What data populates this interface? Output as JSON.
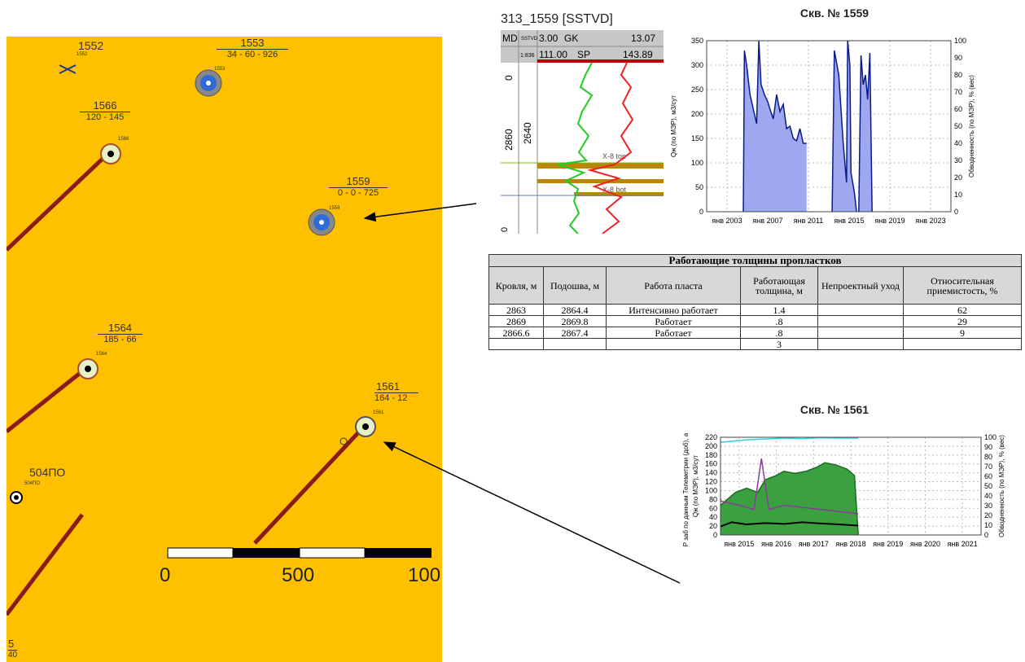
{
  "map": {
    "wells": [
      {
        "id": "1552",
        "values": "",
        "tiny": "1552"
      },
      {
        "id": "1553",
        "values": "34 - 60 - 926",
        "tiny": "1553"
      },
      {
        "id": "1566",
        "values": "120 - 145",
        "tiny": "1566"
      },
      {
        "id": "1559",
        "values": "0 - 0 - 725",
        "tiny": "1559"
      },
      {
        "id": "1564",
        "values": "185 - 66",
        "tiny": "1564"
      },
      {
        "id": "1561",
        "values": "164 - 12",
        "tiny": "1561"
      },
      {
        "id": "504ПО",
        "values": "",
        "tiny": "504ПО"
      },
      {
        "id": "5",
        "values": "40",
        "tiny": ""
      }
    ],
    "scale_labels": [
      "0",
      "500",
      "100"
    ],
    "colors": {
      "background": "#ffc000",
      "trajectory": "#8b1a1a"
    }
  },
  "log": {
    "title": "313_1559 [SSTVD]",
    "header": {
      "md": "MD",
      "sstvd": "SSTVD",
      "gk_min": "3.00",
      "gk_name": "GK",
      "gk_max": "13.07",
      "ratio": "1:836",
      "sp_min": "111.00",
      "sp_name": "SP",
      "sp_max": "143.89"
    },
    "depth_md": "2860",
    "depth_ss": "2640",
    "depth_top": "0",
    "marker_top": "X-8 top",
    "marker_bot": "X-8 bot"
  },
  "chart1559": {
    "title": "Скв. № 1559",
    "chart_data": {
      "type": "area",
      "title": "Скв. № 1559",
      "ylabel": "Qж (по МЭР), м3/сут",
      "y2label": "Обводненность (по МЭР), % (вес)",
      "ylim": [
        0,
        350
      ],
      "y2lim": [
        0,
        100
      ],
      "yticks": [
        "0",
        "50",
        "100",
        "150",
        "200",
        "250",
        "300",
        "350"
      ],
      "y2ticks": [
        "0",
        "10",
        "20",
        "30",
        "40",
        "50",
        "60",
        "70",
        "80",
        "90",
        "100"
      ],
      "xticks": [
        "янв 2003",
        "янв 2007",
        "янв 2011",
        "янв 2015",
        "янв 2019",
        "янв 2023"
      ],
      "xlim": [
        2002.3,
        2024.3
      ],
      "grid": true,
      "series": [
        {
          "x": [
            2005.6,
            2005.7,
            2005.9,
            2006.2,
            2006.5,
            2006.8,
            2007.0,
            2007.2,
            2007.5,
            2007.8,
            2008.0,
            2008.3,
            2008.6,
            2008.9,
            2009.2,
            2009.5,
            2009.8,
            2010.1,
            2010.4,
            2010.7,
            2011.0,
            2011.3
          ],
          "y": [
            0,
            330,
            300,
            240,
            210,
            180,
            350,
            260,
            240,
            225,
            210,
            190,
            240,
            205,
            220,
            170,
            175,
            150,
            145,
            170,
            140,
            140
          ]
        },
        {
          "x": [
            2013.6,
            2013.8,
            2014.2,
            2014.6,
            2014.9,
            2015.0,
            2015.2,
            2015.3,
            2015.6,
            2015.8
          ],
          "y": [
            0,
            330,
            280,
            140,
            60,
            350,
            300,
            80,
            40,
            0
          ]
        },
        {
          "x": [
            2016.0,
            2016.2,
            2016.4,
            2016.6,
            2016.8,
            2017.0,
            2017.2
          ],
          "y": [
            0,
            320,
            260,
            280,
            230,
            325,
            0
          ]
        }
      ]
    }
  },
  "chart1561": {
    "title": "Скв. № 1561",
    "chart_data": {
      "type": "area",
      "title": "Скв. № 1561",
      "ylabel": "P заб по данным Телеметрии (доб), атм",
      "ylabel2": "Qж (по МЭР), м3/сут",
      "y2label": "Обводненность (по МЭР), % (вес)",
      "ylim": [
        0,
        230
      ],
      "y2lim": [
        0,
        100
      ],
      "yticks": [
        "0",
        "20",
        "40",
        "60",
        "80",
        "100",
        "120",
        "140",
        "160",
        "180",
        "200",
        "220"
      ],
      "y2ticks": [
        "0",
        "10",
        "20",
        "30",
        "40",
        "50",
        "60",
        "70",
        "80",
        "90",
        "100"
      ],
      "xticks": [
        "янв 2015",
        "янв 2016",
        "янв 2017",
        "янв 2018",
        "янв 2019",
        "янв 2020",
        "янв 2021"
      ],
      "xlim": [
        2014.3,
        2021.3
      ],
      "grid": true,
      "series": [
        {
          "name": "",
          "x": [
            2014.3,
            2014.7,
            2015.0,
            2015.3,
            2015.5,
            2015.8,
            2016.0,
            2016.3,
            2016.6,
            2016.9,
            2017.1,
            2017.4,
            2017.7,
            2017.9,
            2018.0
          ],
          "y": [
            70,
            100,
            110,
            100,
            130,
            140,
            150,
            145,
            150,
            160,
            170,
            165,
            155,
            140,
            0
          ]
        },
        {
          "name": "",
          "x": [
            2014.3,
            2014.8,
            2015.2,
            2015.4,
            2015.6,
            2016.0,
            2016.5,
            2017.0,
            2017.5,
            2018.0
          ],
          "y": [
            80,
            70,
            60,
            180,
            60,
            70,
            65,
            60,
            55,
            50
          ]
        },
        {
          "name": "",
          "x": [
            2014.3,
            2014.6,
            2015.0,
            2015.5,
            2016.0,
            2016.5,
            2017.0,
            2017.5,
            2018.0
          ],
          "y": [
            20,
            30,
            25,
            28,
            26,
            30,
            27,
            25,
            22
          ]
        },
        {
          "name": "",
          "x": [
            2014.3,
            2015.0,
            2015.5,
            2016.0,
            2016.5,
            2017.0,
            2017.5,
            2018.0
          ],
          "y": [
            218,
            224,
            226,
            228,
            227,
            229,
            228,
            228
          ]
        }
      ]
    }
  },
  "table": {
    "caption": "Работающие толщины пропластков",
    "headers": [
      "Кровля, м",
      "Подошва, м",
      "Работа пласта",
      "Работающая толщина, м",
      "Непроектный уход",
      "Относительная приемистость, %"
    ],
    "rows": [
      [
        "2863",
        "2864.4",
        "Интенсивно работает",
        "1.4",
        "",
        "62"
      ],
      [
        "2869",
        "2869.8",
        "Работает",
        ".8",
        "",
        "29"
      ],
      [
        "2866.6",
        "2867.4",
        "Работает",
        ".8",
        "",
        "9"
      ],
      [
        "",
        "",
        "",
        "3",
        "",
        ""
      ]
    ]
  }
}
